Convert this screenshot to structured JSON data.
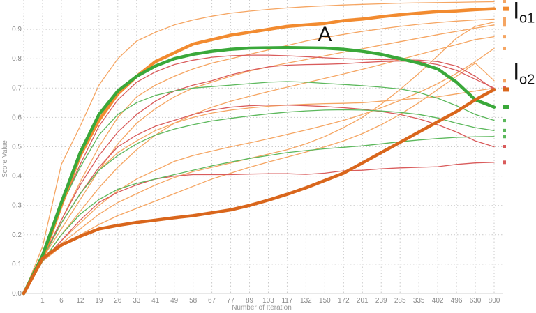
{
  "chart_data": {
    "type": "line",
    "title": "",
    "xlabel": "Number of Iteration",
    "ylabel": "Score Value",
    "ylim": [
      0,
      1.0
    ],
    "yticks": [
      "0.0",
      "0.1",
      "0.2",
      "0.3",
      "0.4",
      "0.5",
      "0.6",
      "0.7",
      "0.8",
      "0.9"
    ],
    "categories": [
      "0",
      "1",
      "6",
      "12",
      "19",
      "26",
      "33",
      "41",
      "49",
      "58",
      "67",
      "77",
      "89",
      "103",
      "117",
      "132",
      "150",
      "172",
      "201",
      "239",
      "285",
      "335",
      "402",
      "496",
      "630",
      "800"
    ],
    "xtick_labels": [
      "1",
      "6",
      "12",
      "19",
      "26",
      "33",
      "41",
      "49",
      "58",
      "67",
      "77",
      "89",
      "103",
      "117",
      "132",
      "150",
      "172",
      "201",
      "239",
      "285",
      "335",
      "402",
      "496",
      "630",
      "800"
    ],
    "grid": true,
    "legend": "none",
    "annotations": [
      {
        "text": "A",
        "series": 1,
        "category": "150"
      },
      {
        "text": "I",
        "subscript": "o1",
        "series": 0,
        "category": "800"
      },
      {
        "text": "I",
        "subscript": "o2",
        "series": 2,
        "category": "800"
      }
    ],
    "series": [
      {
        "color": "#f28b30",
        "width": 4.5,
        "marker": true,
        "values": [
          0,
          0.12,
          0.3,
          0.47,
          0.59,
          0.68,
          0.74,
          0.79,
          0.82,
          0.85,
          0.865,
          0.88,
          0.89,
          0.9,
          0.91,
          0.915,
          0.92,
          0.93,
          0.935,
          0.943,
          0.95,
          0.955,
          0.96,
          0.963,
          0.967,
          0.97
        ]
      },
      {
        "color": "#3aa83a",
        "width": 4.5,
        "marker": true,
        "values": [
          0,
          0.13,
          0.31,
          0.48,
          0.61,
          0.69,
          0.74,
          0.775,
          0.8,
          0.815,
          0.825,
          0.832,
          0.836,
          0.837,
          0.838,
          0.837,
          0.836,
          0.832,
          0.825,
          0.815,
          0.8,
          0.785,
          0.765,
          0.72,
          0.66,
          0.635
        ]
      },
      {
        "color": "#d9661c",
        "width": 4.5,
        "marker": true,
        "values": [
          0,
          0.12,
          0.165,
          0.195,
          0.22,
          0.232,
          0.242,
          0.25,
          0.258,
          0.265,
          0.275,
          0.285,
          0.3,
          0.318,
          0.338,
          0.36,
          0.385,
          0.41,
          0.445,
          0.48,
          0.515,
          0.55,
          0.585,
          0.62,
          0.66,
          0.695
        ]
      },
      {
        "color": "#f5a562",
        "width": 1.3,
        "marker": true,
        "values": [
          0,
          0.16,
          0.44,
          0.57,
          0.71,
          0.8,
          0.86,
          0.89,
          0.915,
          0.932,
          0.945,
          0.955,
          0.962,
          0.968,
          0.973,
          0.977,
          0.98,
          0.983,
          0.985,
          0.987,
          0.989,
          0.99,
          0.991,
          0.992,
          0.993,
          0.994
        ]
      },
      {
        "color": "#f5a562",
        "width": 1.3,
        "marker": true,
        "values": [
          0,
          0.12,
          0.25,
          0.38,
          0.5,
          0.6,
          0.67,
          0.71,
          0.74,
          0.765,
          0.785,
          0.8,
          0.815,
          0.83,
          0.845,
          0.86,
          0.872,
          0.883,
          0.893,
          0.902,
          0.91,
          0.917,
          0.923,
          0.928,
          0.932,
          0.935
        ]
      },
      {
        "color": "#f5a562",
        "width": 1.3,
        "marker": true,
        "values": [
          0,
          0.12,
          0.22,
          0.32,
          0.42,
          0.51,
          0.58,
          0.63,
          0.67,
          0.7,
          0.72,
          0.74,
          0.758,
          0.772,
          0.785,
          0.797,
          0.81,
          0.822,
          0.834,
          0.846,
          0.858,
          0.87,
          0.882,
          0.893,
          0.904,
          0.915
        ]
      },
      {
        "color": "#f5a562",
        "width": 1.3,
        "marker": true,
        "values": [
          0,
          0.11,
          0.2,
          0.28,
          0.36,
          0.43,
          0.49,
          0.54,
          0.58,
          0.61,
          0.635,
          0.655,
          0.672,
          0.688,
          0.703,
          0.718,
          0.733,
          0.748,
          0.764,
          0.78,
          0.797,
          0.814,
          0.831,
          0.848,
          0.865,
          0.875
        ]
      },
      {
        "color": "#f5a562",
        "width": 1.3,
        "marker": true,
        "values": [
          0,
          0.11,
          0.18,
          0.24,
          0.3,
          0.35,
          0.39,
          0.42,
          0.45,
          0.47,
          0.485,
          0.5,
          0.513,
          0.527,
          0.542,
          0.557,
          0.573,
          0.59,
          0.61,
          0.633,
          0.658,
          0.685,
          0.715,
          0.75,
          0.79,
          0.835
        ]
      },
      {
        "color": "#f5a562",
        "width": 1.3,
        "marker": true,
        "values": [
          0,
          0.11,
          0.16,
          0.2,
          0.235,
          0.265,
          0.29,
          0.315,
          0.34,
          0.365,
          0.39,
          0.41,
          0.43,
          0.448,
          0.465,
          0.482,
          0.5,
          0.52,
          0.545,
          0.575,
          0.61,
          0.65,
          0.695,
          0.74,
          0.785,
          0.725
        ]
      },
      {
        "color": "#f5a562",
        "width": 1.3,
        "marker": true,
        "values": [
          0,
          0.12,
          0.24,
          0.34,
          0.42,
          0.48,
          0.52,
          0.555,
          0.58,
          0.6,
          0.615,
          0.625,
          0.632,
          0.638,
          0.642,
          0.645,
          0.647,
          0.648,
          0.65,
          0.655,
          0.66,
          0.665,
          0.67,
          0.68,
          0.69,
          0.7
        ]
      },
      {
        "color": "#f5a562",
        "width": 1.3,
        "marker": true,
        "values": [
          0,
          0.11,
          0.17,
          0.22,
          0.27,
          0.31,
          0.34,
          0.37,
          0.395,
          0.415,
          0.43,
          0.445,
          0.46,
          0.475,
          0.49,
          0.51,
          0.535,
          0.565,
          0.6,
          0.645,
          0.695,
          0.75,
          0.81,
          0.87,
          0.91,
          0.925
        ]
      },
      {
        "color": "#d95b5b",
        "width": 1.3,
        "marker": true,
        "values": [
          0,
          0.13,
          0.3,
          0.44,
          0.57,
          0.66,
          0.72,
          0.755,
          0.78,
          0.795,
          0.805,
          0.81,
          0.812,
          0.812,
          0.81,
          0.807,
          0.803,
          0.8,
          0.798,
          0.797,
          0.796,
          0.795,
          0.79,
          0.775,
          0.74,
          0.695
        ]
      },
      {
        "color": "#d95b5b",
        "width": 1.3,
        "marker": true,
        "values": [
          0,
          0.12,
          0.25,
          0.37,
          0.47,
          0.55,
          0.61,
          0.655,
          0.69,
          0.71,
          0.725,
          0.745,
          0.76,
          0.772,
          0.778,
          0.78,
          0.781,
          0.783,
          0.787,
          0.79,
          0.792,
          0.79,
          0.78,
          0.76,
          0.73,
          0.7
        ]
      },
      {
        "color": "#d95b5b",
        "width": 1.3,
        "marker": true,
        "values": [
          0,
          0.12,
          0.24,
          0.34,
          0.43,
          0.5,
          0.54,
          0.57,
          0.59,
          0.61,
          0.625,
          0.635,
          0.64,
          0.642,
          0.642,
          0.64,
          0.637,
          0.633,
          0.628,
          0.62,
          0.61,
          0.595,
          0.575,
          0.55,
          0.52,
          0.5
        ]
      },
      {
        "color": "#d95b5b",
        "width": 1.3,
        "marker": true,
        "values": [
          0,
          0.11,
          0.18,
          0.25,
          0.31,
          0.345,
          0.37,
          0.39,
          0.4,
          0.405,
          0.405,
          0.405,
          0.407,
          0.408,
          0.408,
          0.406,
          0.41,
          0.418,
          0.42,
          0.425,
          0.428,
          0.43,
          0.432,
          0.44,
          0.445,
          0.447
        ]
      },
      {
        "color": "#5cb85c",
        "width": 1.3,
        "marker": true,
        "values": [
          0,
          0.13,
          0.3,
          0.43,
          0.54,
          0.61,
          0.65,
          0.675,
          0.69,
          0.7,
          0.705,
          0.71,
          0.715,
          0.72,
          0.722,
          0.72,
          0.716,
          0.712,
          0.708,
          0.703,
          0.697,
          0.685,
          0.665,
          0.64,
          0.61,
          0.59
        ]
      },
      {
        "color": "#5cb85c",
        "width": 1.3,
        "marker": true,
        "values": [
          0,
          0.12,
          0.24,
          0.34,
          0.42,
          0.47,
          0.51,
          0.54,
          0.56,
          0.575,
          0.588,
          0.597,
          0.605,
          0.612,
          0.618,
          0.622,
          0.625,
          0.626,
          0.625,
          0.622,
          0.617,
          0.61,
          0.598,
          0.58,
          0.565,
          0.555
        ]
      },
      {
        "color": "#5cb85c",
        "width": 1.3,
        "marker": true,
        "values": [
          0,
          0.11,
          0.2,
          0.27,
          0.32,
          0.355,
          0.375,
          0.39,
          0.405,
          0.42,
          0.435,
          0.448,
          0.46,
          0.47,
          0.48,
          0.487,
          0.493,
          0.498,
          0.503,
          0.51,
          0.517,
          0.523,
          0.528,
          0.532,
          0.534,
          0.535
        ]
      }
    ]
  }
}
